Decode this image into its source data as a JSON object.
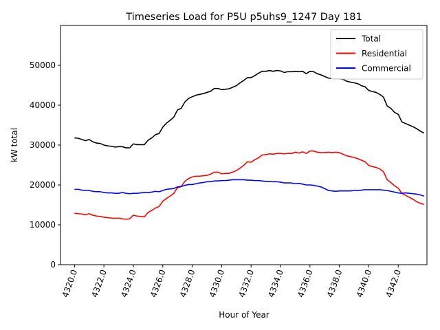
{
  "chart_data": {
    "type": "line",
    "title": "Timeseries Load for P5U p5uhs9_1247  Day 181",
    "xlabel": "Hour of Year",
    "ylabel": "kW total",
    "xlim": [
      4319.05,
      4343.95
    ],
    "ylim": [
      0,
      60000
    ],
    "xticks": [
      4320,
      4322,
      4324,
      4326,
      4328,
      4330,
      4332,
      4334,
      4336,
      4338,
      4340,
      4342
    ],
    "xtick_labels": [
      "4320.0",
      "4322.0",
      "4324.0",
      "4326.0",
      "4328.0",
      "4330.0",
      "4332.0",
      "4334.0",
      "4336.0",
      "4338.0",
      "4340.0",
      "4342.0"
    ],
    "yticks": [
      0,
      10000,
      20000,
      30000,
      40000,
      50000
    ],
    "ytick_labels": [
      "0",
      "10000",
      "20000",
      "30000",
      "40000",
      "50000"
    ],
    "legend_position": "top-right",
    "x": [
      4320.0,
      4320.25,
      4320.5,
      4320.75,
      4321.0,
      4321.25,
      4321.5,
      4321.75,
      4322.0,
      4322.25,
      4322.5,
      4322.75,
      4323.0,
      4323.25,
      4323.5,
      4323.75,
      4324.0,
      4324.25,
      4324.5,
      4324.75,
      4325.0,
      4325.25,
      4325.5,
      4325.75,
      4326.0,
      4326.25,
      4326.5,
      4326.75,
      4327.0,
      4327.25,
      4327.5,
      4327.75,
      4328.0,
      4328.25,
      4328.5,
      4328.75,
      4329.0,
      4329.25,
      4329.5,
      4329.75,
      4330.0,
      4330.25,
      4330.5,
      4330.75,
      4331.0,
      4331.25,
      4331.5,
      4331.75,
      4332.0,
      4332.25,
      4332.5,
      4332.75,
      4333.0,
      4333.25,
      4333.5,
      4333.75,
      4334.0,
      4334.25,
      4334.5,
      4334.75,
      4335.0,
      4335.25,
      4335.5,
      4335.75,
      4336.0,
      4336.25,
      4336.5,
      4336.75,
      4337.0,
      4337.25,
      4337.5,
      4337.75,
      4338.0,
      4338.25,
      4338.5,
      4338.75,
      4339.0,
      4339.25,
      4339.5,
      4339.75,
      4340.0,
      4340.25,
      4340.5,
      4340.75,
      4341.0,
      4341.25,
      4341.5,
      4341.75,
      4342.0,
      4342.25,
      4342.5,
      4342.75,
      4343.0,
      4343.25,
      4343.5,
      4343.75
    ],
    "series": [
      {
        "name": "Total",
        "color": "#000000",
        "values": [
          31800,
          31700,
          31400,
          31100,
          31400,
          30800,
          30500,
          30400,
          30000,
          29800,
          29700,
          29500,
          29600,
          29600,
          29300,
          29300,
          30300,
          30100,
          30100,
          30100,
          31200,
          31800,
          32600,
          32900,
          34500,
          35500,
          36200,
          37000,
          38800,
          39200,
          40800,
          41700,
          42100,
          42500,
          42700,
          42900,
          43200,
          43500,
          44200,
          44200,
          43900,
          44000,
          44100,
          44500,
          44900,
          45600,
          46200,
          46900,
          46900,
          47400,
          48000,
          48500,
          48500,
          48700,
          48500,
          48700,
          48600,
          48200,
          48400,
          48400,
          48500,
          48400,
          48500,
          47900,
          48500,
          48400,
          47900,
          47600,
          47200,
          46800,
          46700,
          46600,
          46600,
          46500,
          46000,
          45800,
          45600,
          45400,
          44900,
          44600,
          43700,
          43400,
          43200,
          42700,
          42000,
          39800,
          39200,
          38200,
          37700,
          35800,
          35400,
          35000,
          34600,
          34100,
          33500,
          33000
        ],
        "label": "Total"
      },
      {
        "name": "Residential",
        "color": "#ff0000",
        "values": [
          12900,
          12800,
          12700,
          12500,
          12800,
          12400,
          12200,
          12100,
          11900,
          11800,
          11700,
          11600,
          11700,
          11500,
          11400,
          11500,
          12400,
          12200,
          12100,
          12000,
          13100,
          13600,
          14200,
          14600,
          15900,
          16600,
          17200,
          17900,
          19300,
          19600,
          20900,
          21600,
          22000,
          22200,
          22200,
          22300,
          22400,
          22700,
          23200,
          23200,
          22800,
          22900,
          22900,
          23200,
          23600,
          24200,
          24900,
          25800,
          25700,
          26300,
          26800,
          27500,
          27600,
          27800,
          27700,
          27900,
          27900,
          27800,
          27900,
          27900,
          28200,
          28000,
          28300,
          27900,
          28500,
          28500,
          28200,
          28100,
          28100,
          28200,
          28100,
          28200,
          28100,
          27700,
          27300,
          27100,
          26900,
          26600,
          26200,
          25800,
          24900,
          24600,
          24400,
          24000,
          23300,
          21300,
          20600,
          19800,
          19200,
          17900,
          17400,
          16900,
          16400,
          15800,
          15400,
          15100
        ],
        "label": "Residential"
      },
      {
        "name": "Commercial",
        "color": "#0000ff",
        "values": [
          18900,
          18900,
          18700,
          18600,
          18600,
          18400,
          18300,
          18300,
          18100,
          18000,
          18000,
          17900,
          17900,
          18100,
          17900,
          17800,
          17900,
          17900,
          18000,
          18100,
          18100,
          18200,
          18400,
          18300,
          18600,
          18900,
          19000,
          19100,
          19500,
          19600,
          19900,
          20100,
          20100,
          20300,
          20500,
          20600,
          20800,
          20800,
          21000,
          21000,
          21100,
          21100,
          21200,
          21300,
          21300,
          21300,
          21300,
          21200,
          21200,
          21100,
          21100,
          21000,
          20900,
          20900,
          20800,
          20800,
          20700,
          20500,
          20500,
          20500,
          20300,
          20400,
          20200,
          20000,
          20000,
          19900,
          19700,
          19500,
          19100,
          18600,
          18500,
          18400,
          18500,
          18500,
          18500,
          18500,
          18600,
          18600,
          18700,
          18800,
          18800,
          18800,
          18800,
          18800,
          18700,
          18600,
          18400,
          18200,
          18000,
          17900,
          18000,
          17900,
          17800,
          17700,
          17500,
          17200
        ],
        "label": "Commercial"
      }
    ]
  }
}
